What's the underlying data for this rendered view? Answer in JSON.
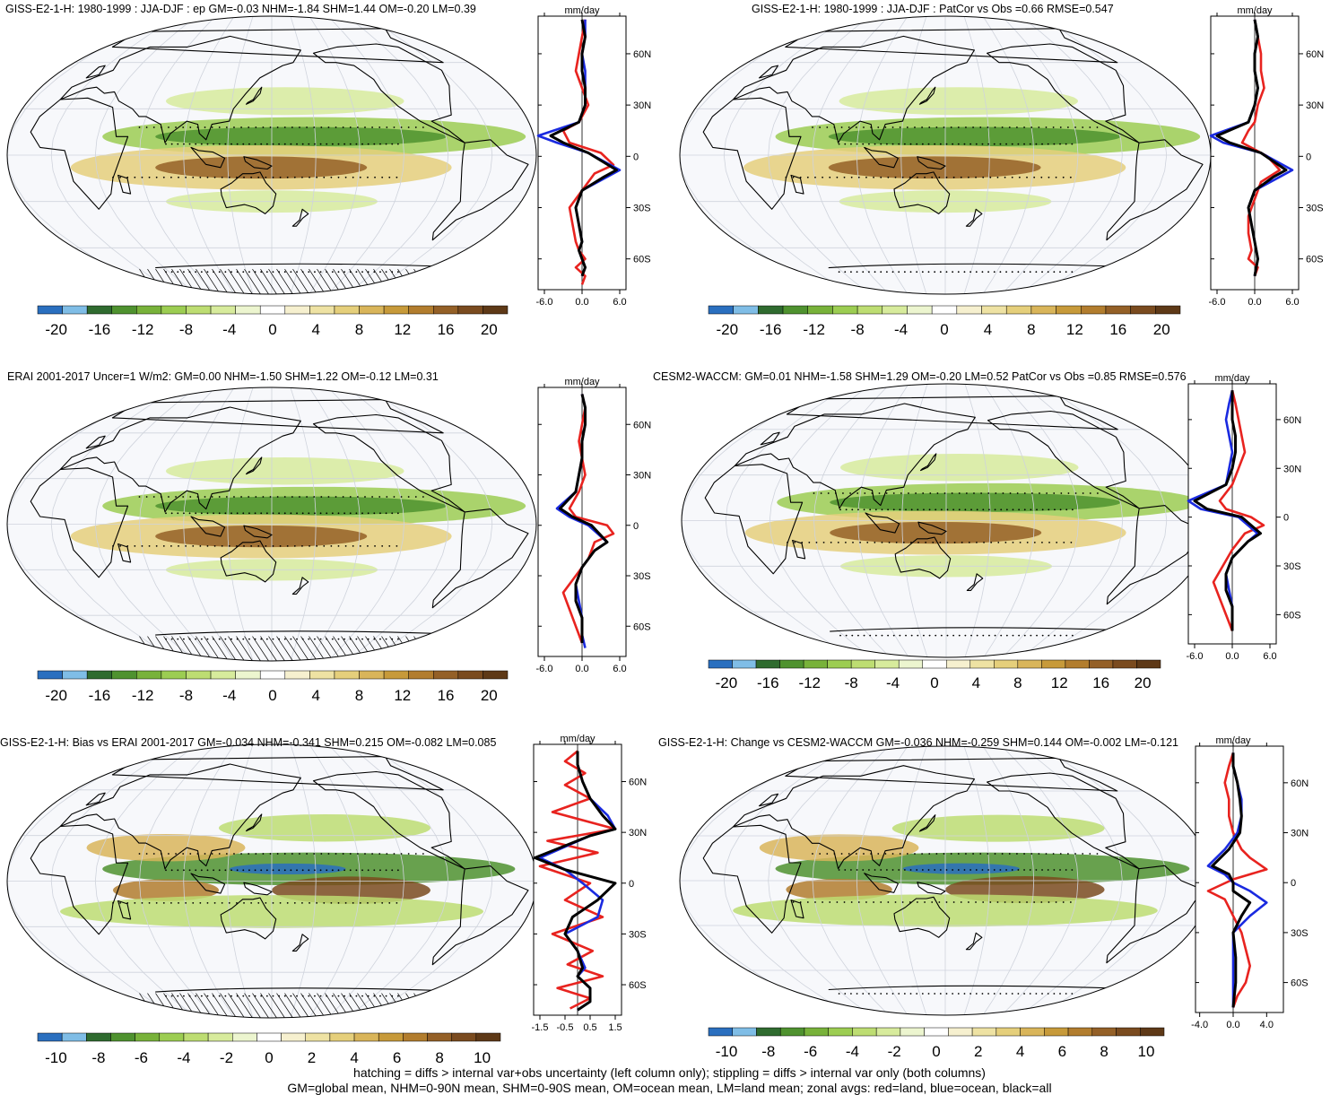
{
  "units": "mm/day",
  "palette": [
    "#2a6fbf",
    "#7fbde6",
    "#2f6b2f",
    "#4f922f",
    "#78b23a",
    "#9ccd52",
    "#bddd72",
    "#d7eb9c",
    "#ecf5cf",
    "#ffffff",
    "#f6f0cf",
    "#eee2a3",
    "#e5cf7b",
    "#d9b55a",
    "#c79a3a",
    "#b27d2e",
    "#946027",
    "#7a4b1f",
    "#5e3917"
  ],
  "colors": {
    "land": "#e8231f",
    "ocean": "#1a2ae0",
    "all": "#000000"
  },
  "panels": [
    {
      "title": "GISS-E2-1-H: 1980-1999 : JJA-DJF : ep GM=-0.03 NHM=-1.84 SHM=1.44 OM=-0.20 LM=0.39",
      "colorbar_labels": [
        "-20",
        "-16",
        "-12",
        "-8",
        "-4",
        "0",
        "4",
        "8",
        "12",
        "16",
        "20"
      ],
      "zonal_xticks": [
        "-6.0",
        "0.0",
        "6.0"
      ],
      "zonal_yticks": [
        "60N",
        "30N",
        "0",
        "30S",
        "60S"
      ],
      "hatching": true
    },
    {
      "title": "GISS-E2-1-H: 1980-1999 : JJA-DJF : PatCor vs Obs =0.66 RMSE=0.547",
      "colorbar_labels": [
        "-20",
        "-16",
        "-12",
        "-8",
        "-4",
        "0",
        "4",
        "8",
        "12",
        "16",
        "20"
      ],
      "zonal_xticks": [
        "-6.0",
        "0.0",
        "6.0"
      ],
      "zonal_yticks": [
        "60N",
        "30N",
        "0",
        "30S",
        "60S"
      ],
      "hatching": false
    },
    {
      "title": "ERAI 2001-2017 Uncer=1 W/m2: GM=0.00 NHM=-1.50 SHM=1.22 OM=-0.12 LM=0.31",
      "colorbar_labels": [
        "-20",
        "-16",
        "-12",
        "-8",
        "-4",
        "0",
        "4",
        "8",
        "12",
        "16",
        "20"
      ],
      "zonal_xticks": [
        "-6.0",
        "0.0",
        "6.0"
      ],
      "zonal_yticks": [
        "60N",
        "30N",
        "0",
        "30S",
        "60S"
      ],
      "hatching": true
    },
    {
      "title": "CESM2-WACCM: GM=0.01 NHM=-1.58 SHM=1.29 OM=-0.20 LM=0.52 PatCor vs Obs =0.85 RMSE=0.576",
      "colorbar_labels": [
        "-20",
        "-16",
        "-12",
        "-8",
        "-4",
        "0",
        "4",
        "8",
        "12",
        "16",
        "20"
      ],
      "zonal_xticks": [
        "-6.0",
        "0.0",
        "6.0"
      ],
      "zonal_yticks": [
        "60N",
        "30N",
        "0",
        "30S",
        "60S"
      ],
      "hatching": false
    },
    {
      "title": "GISS-E2-1-H: Bias vs ERAI 2001-2017 GM=-0.034 NHM=-0.341 SHM=0.215 OM=-0.082 LM=0.085",
      "colorbar_labels": [
        "-10",
        "-8",
        "-6",
        "-4",
        "-2",
        "0",
        "2",
        "4",
        "6",
        "8",
        "10"
      ],
      "zonal_xticks": [
        "-1.5",
        "-0.5",
        "0.5",
        "1.5"
      ],
      "zonal_yticks": [
        "60N",
        "30N",
        "0",
        "30S",
        "60S"
      ],
      "hatching": true
    },
    {
      "title": "GISS-E2-1-H: Change vs CESM2-WACCM GM=-0.036 NHM=-0.259 SHM=0.144 OM=-0.002 LM=-0.121",
      "colorbar_labels": [
        "-10",
        "-8",
        "-6",
        "-4",
        "-2",
        "0",
        "2",
        "4",
        "6",
        "8",
        "10"
      ],
      "zonal_xticks": [
        "-4.0",
        "0.0",
        "4.0"
      ],
      "zonal_yticks": [
        "60N",
        "30N",
        "0",
        "30S",
        "60S"
      ],
      "hatching": false
    }
  ],
  "footer": {
    "line1": "hatching = diffs > internal var+obs uncertainty (left column only); stippling = diffs > internal var only (both columns)",
    "line2": "GM=global mean, NHM=0-90N mean, SHM=0-90S mean, OM=ocean mean, LM=land mean; zonal avgs: red=land, blue=ocean, black=all"
  },
  "chart_data": [
    {
      "type": "line",
      "title": "GISS-E2-1-H: 1980-1999 : JJA-DJF : ep GM=-0.03 NHM=-1.84 SHM=1.44 OM=-0.20 LM=0.39",
      "xlabel": "mm/day",
      "xlim": [
        -7,
        7
      ],
      "ylim": [
        -78,
        82
      ],
      "x_ticks": [
        -6,
        0,
        6
      ],
      "y_ticks": [
        60,
        30,
        0,
        -30,
        -60
      ],
      "series": [
        {
          "color": "land",
          "x": [
            0.5,
            0,
            -0.5,
            -1,
            0,
            1,
            -0.5,
            -3,
            -2,
            3,
            5,
            2,
            0,
            -2,
            -1.5,
            -1,
            -0.5,
            0.5,
            -1,
            0.5,
            0
          ],
          "y": [
            80,
            70,
            60,
            50,
            40,
            30,
            20,
            15,
            8,
            2,
            -5,
            -10,
            -20,
            -30,
            -40,
            -50,
            -55,
            -60,
            -65,
            -70,
            -75
          ]
        },
        {
          "color": "ocean",
          "x": [
            0.5,
            0.5,
            0,
            0.5,
            0.5,
            0.5,
            -0.5,
            -7,
            -4,
            1,
            6,
            4,
            0,
            -1,
            -0.5,
            0,
            -0.5,
            0,
            0.5,
            0
          ],
          "y": [
            80,
            70,
            60,
            50,
            40,
            30,
            20,
            12,
            8,
            2,
            -8,
            -12,
            -20,
            -30,
            -40,
            -50,
            -55,
            -60,
            -65,
            -70
          ]
        },
        {
          "color": "all",
          "x": [
            0,
            0.5,
            0,
            0,
            0.5,
            0.5,
            -0.5,
            -5,
            -3,
            1,
            5.5,
            3.5,
            0,
            -1,
            -0.5,
            0,
            -0.5,
            0,
            0.5,
            0
          ],
          "y": [
            80,
            70,
            60,
            50,
            40,
            30,
            20,
            12,
            8,
            2,
            -8,
            -12,
            -20,
            -30,
            -40,
            -50,
            -55,
            -60,
            -65,
            -70
          ]
        }
      ]
    },
    {
      "type": "line",
      "title": "GISS-E2-1-H: 1980-1999 : JJA-DJF : PatCor vs Obs =0.66 RMSE=0.547",
      "xlabel": "mm/day",
      "xlim": [
        -7,
        7
      ],
      "ylim": [
        -78,
        82
      ],
      "x_ticks": [
        -6,
        0,
        6
      ],
      "y_ticks": [
        60,
        30,
        0,
        -30,
        -60
      ],
      "series": [
        {
          "color": "land",
          "x": [
            0,
            0.5,
            1,
            1,
            1.5,
            0.5,
            0,
            -1,
            -2,
            2,
            4,
            1,
            0,
            -1,
            -1,
            -0.5,
            -1,
            0.5,
            0
          ],
          "y": [
            80,
            70,
            60,
            50,
            40,
            30,
            20,
            15,
            8,
            0,
            -8,
            -15,
            -25,
            -35,
            -45,
            -55,
            -60,
            -65,
            -70
          ]
        },
        {
          "color": "ocean",
          "x": [
            0,
            0.5,
            0,
            0,
            0.5,
            0,
            -1,
            -7,
            -5,
            1,
            6,
            4,
            0,
            -1,
            -0.5,
            0,
            0.5,
            0
          ],
          "y": [
            80,
            70,
            60,
            50,
            40,
            30,
            20,
            12,
            8,
            2,
            -8,
            -12,
            -20,
            -30,
            -40,
            -50,
            -60,
            -70
          ]
        },
        {
          "color": "all",
          "x": [
            0,
            0.5,
            0,
            0,
            0.5,
            0,
            -1,
            -6,
            -4,
            1,
            5,
            3,
            0,
            -1,
            -0.5,
            0,
            0.5,
            0
          ],
          "y": [
            80,
            70,
            60,
            50,
            40,
            30,
            20,
            12,
            8,
            2,
            -8,
            -12,
            -20,
            -30,
            -40,
            -50,
            -60,
            -70
          ]
        }
      ]
    },
    {
      "type": "line",
      "title": "ERAI 2001-2017 Uncer=1 W/m2: GM=0.00 NHM=-1.50 SHM=1.22 OM=-0.12 LM=0.31",
      "xlabel": "mm/day",
      "xlim": [
        -7,
        7
      ],
      "ylim": [
        -78,
        82
      ],
      "x_ticks": [
        -6,
        0,
        6
      ],
      "y_ticks": [
        60,
        30,
        0,
        -30,
        -60
      ],
      "series": [
        {
          "color": "land",
          "x": [
            0,
            0.5,
            0,
            -0.5,
            0,
            0.5,
            -0.5,
            -2,
            -1,
            4,
            5,
            2,
            1,
            -1,
            -3,
            -2,
            -1,
            0
          ],
          "y": [
            78,
            70,
            60,
            50,
            40,
            30,
            20,
            10,
            5,
            0,
            -5,
            -10,
            -20,
            -30,
            -40,
            -50,
            -60,
            -70
          ]
        },
        {
          "color": "ocean",
          "x": [
            0,
            0.5,
            0.5,
            0,
            0,
            -0.5,
            -1,
            -4,
            -2,
            1,
            4,
            2,
            0,
            -1,
            -0.5,
            0,
            0,
            0.5
          ],
          "y": [
            78,
            70,
            60,
            50,
            40,
            30,
            20,
            10,
            5,
            0,
            -10,
            -15,
            -25,
            -35,
            -45,
            -55,
            -65,
            -73
          ]
        },
        {
          "color": "all",
          "x": [
            0,
            0.5,
            0.5,
            0,
            0,
            -0.5,
            -1,
            -3.5,
            -1.5,
            1.5,
            4,
            2,
            0,
            -1,
            -1,
            0,
            0,
            0
          ],
          "y": [
            78,
            70,
            60,
            50,
            40,
            30,
            20,
            10,
            5,
            0,
            -10,
            -15,
            -25,
            -35,
            -45,
            -55,
            -65,
            -70
          ]
        }
      ]
    },
    {
      "type": "line",
      "title": "CESM2-WACCM: GM=0.01 NHM=-1.58 SHM=1.29 OM=-0.20 LM=0.52 PatCor vs Obs =0.85 RMSE=0.576",
      "xlabel": "mm/day",
      "xlim": [
        -7,
        7
      ],
      "ylim": [
        -78,
        82
      ],
      "x_ticks": [
        -6,
        0,
        6
      ],
      "y_ticks": [
        60,
        30,
        0,
        -30,
        -60
      ],
      "series": [
        {
          "color": "land",
          "x": [
            0,
            0.5,
            1,
            1.5,
            2,
            1,
            0,
            -2,
            -1,
            3,
            5,
            2,
            0,
            -1.5,
            -3,
            -2,
            -1,
            0
          ],
          "y": [
            78,
            70,
            60,
            50,
            40,
            30,
            20,
            10,
            5,
            0,
            -5,
            -10,
            -20,
            -30,
            -40,
            -50,
            -60,
            -70
          ]
        },
        {
          "color": "ocean",
          "x": [
            0,
            -0.5,
            -1,
            -0.5,
            0,
            -0.5,
            -1,
            -7,
            -5,
            1,
            4,
            2.5,
            0,
            -1,
            -0.5,
            0,
            0
          ],
          "y": [
            78,
            70,
            60,
            50,
            40,
            30,
            20,
            10,
            5,
            0,
            -10,
            -15,
            -25,
            -35,
            -45,
            -55,
            -70
          ]
        },
        {
          "color": "all",
          "x": [
            0,
            0,
            0,
            0.5,
            0.5,
            0,
            -1,
            -6,
            -4,
            1.5,
            4.5,
            2.5,
            0,
            -1,
            -1,
            0,
            0
          ],
          "y": [
            78,
            70,
            60,
            50,
            40,
            30,
            20,
            10,
            5,
            0,
            -10,
            -15,
            -25,
            -35,
            -45,
            -55,
            -70
          ]
        }
      ]
    },
    {
      "type": "line",
      "title": "GISS-E2-1-H: Bias vs ERAI 2001-2017 GM=-0.034 NHM=-0.341 SHM=0.215 OM=-0.082 LM=0.085",
      "xlabel": "mm/day",
      "xlim": [
        -1.75,
        1.75
      ],
      "ylim": [
        -78,
        82
      ],
      "x_ticks": [
        -1.5,
        -0.5,
        0.5,
        1.5
      ],
      "y_ticks": [
        60,
        30,
        0,
        -30,
        -60
      ],
      "series": [
        {
          "color": "land",
          "x": [
            0,
            -0.5,
            0.3,
            -0.5,
            0.5,
            -1,
            1.5,
            -1.2,
            0.8,
            -1.5,
            0.5,
            -0.5,
            1,
            -1,
            0.6,
            -0.4,
            1,
            -0.8,
            0.5,
            -0.3
          ],
          "y": [
            78,
            72,
            65,
            58,
            50,
            42,
            32,
            25,
            18,
            10,
            0,
            -10,
            -20,
            -30,
            -40,
            -48,
            -55,
            -62,
            -68,
            -74
          ]
        },
        {
          "color": "ocean",
          "x": [
            0,
            0,
            0.2,
            0.5,
            1.2,
            1.5,
            0.5,
            -1.5,
            -0.5,
            0.2,
            1,
            0.8,
            -0.5,
            0,
            0.3,
            0,
            0.5,
            0.5,
            0
          ],
          "y": [
            78,
            70,
            60,
            50,
            40,
            32,
            28,
            15,
            8,
            0,
            -10,
            -20,
            -30,
            -40,
            -50,
            -55,
            -62,
            -70,
            -75
          ]
        },
        {
          "color": "all",
          "x": [
            0,
            0,
            0.2,
            0.5,
            1,
            1.5,
            0.5,
            -1.7,
            -0.5,
            1.5,
            0.8,
            -0.2,
            -0.5,
            0,
            0.2,
            0,
            0.5,
            0.5,
            0
          ],
          "y": [
            78,
            70,
            60,
            50,
            40,
            32,
            28,
            15,
            8,
            0,
            -10,
            -20,
            -30,
            -40,
            -50,
            -55,
            -62,
            -70,
            -75
          ]
        }
      ]
    },
    {
      "type": "line",
      "title": "GISS-E2-1-H: Change vs CESM2-WACCM GM=-0.036 NHM=-0.259 SHM=0.144 OM=-0.002 LM=-0.121",
      "xlabel": "mm/day",
      "xlim": [
        -4.5,
        6
      ],
      "ylim": [
        -78,
        82
      ],
      "x_ticks": [
        -4,
        0,
        4
      ],
      "y_ticks": [
        60,
        30,
        0,
        -30,
        -60
      ],
      "series": [
        {
          "color": "land",
          "x": [
            0,
            -0.5,
            -1,
            -0.5,
            -0.5,
            0,
            1,
            2,
            4,
            0,
            -3,
            -1,
            0,
            1,
            1.5,
            2,
            1.5,
            0.5,
            0
          ],
          "y": [
            78,
            70,
            60,
            50,
            40,
            30,
            20,
            15,
            8,
            2,
            -5,
            -10,
            -20,
            -30,
            -40,
            -50,
            -60,
            -68,
            -75
          ]
        },
        {
          "color": "ocean",
          "x": [
            0,
            0,
            0.5,
            1,
            1,
            0.5,
            -1,
            -3,
            -1,
            0,
            2,
            4,
            2,
            0,
            0,
            0,
            0
          ],
          "y": [
            78,
            70,
            60,
            50,
            40,
            30,
            20,
            10,
            5,
            0,
            -5,
            -12,
            -20,
            -30,
            -45,
            -60,
            -75
          ]
        },
        {
          "color": "all",
          "x": [
            0,
            0,
            0.5,
            0.8,
            1,
            0.8,
            -0.5,
            -2.5,
            -0.5,
            0,
            0,
            2,
            1,
            0,
            0.3,
            0.3,
            0
          ],
          "y": [
            78,
            70,
            60,
            50,
            40,
            30,
            20,
            10,
            5,
            0,
            -5,
            -12,
            -20,
            -30,
            -45,
            -60,
            -75
          ]
        }
      ]
    }
  ]
}
